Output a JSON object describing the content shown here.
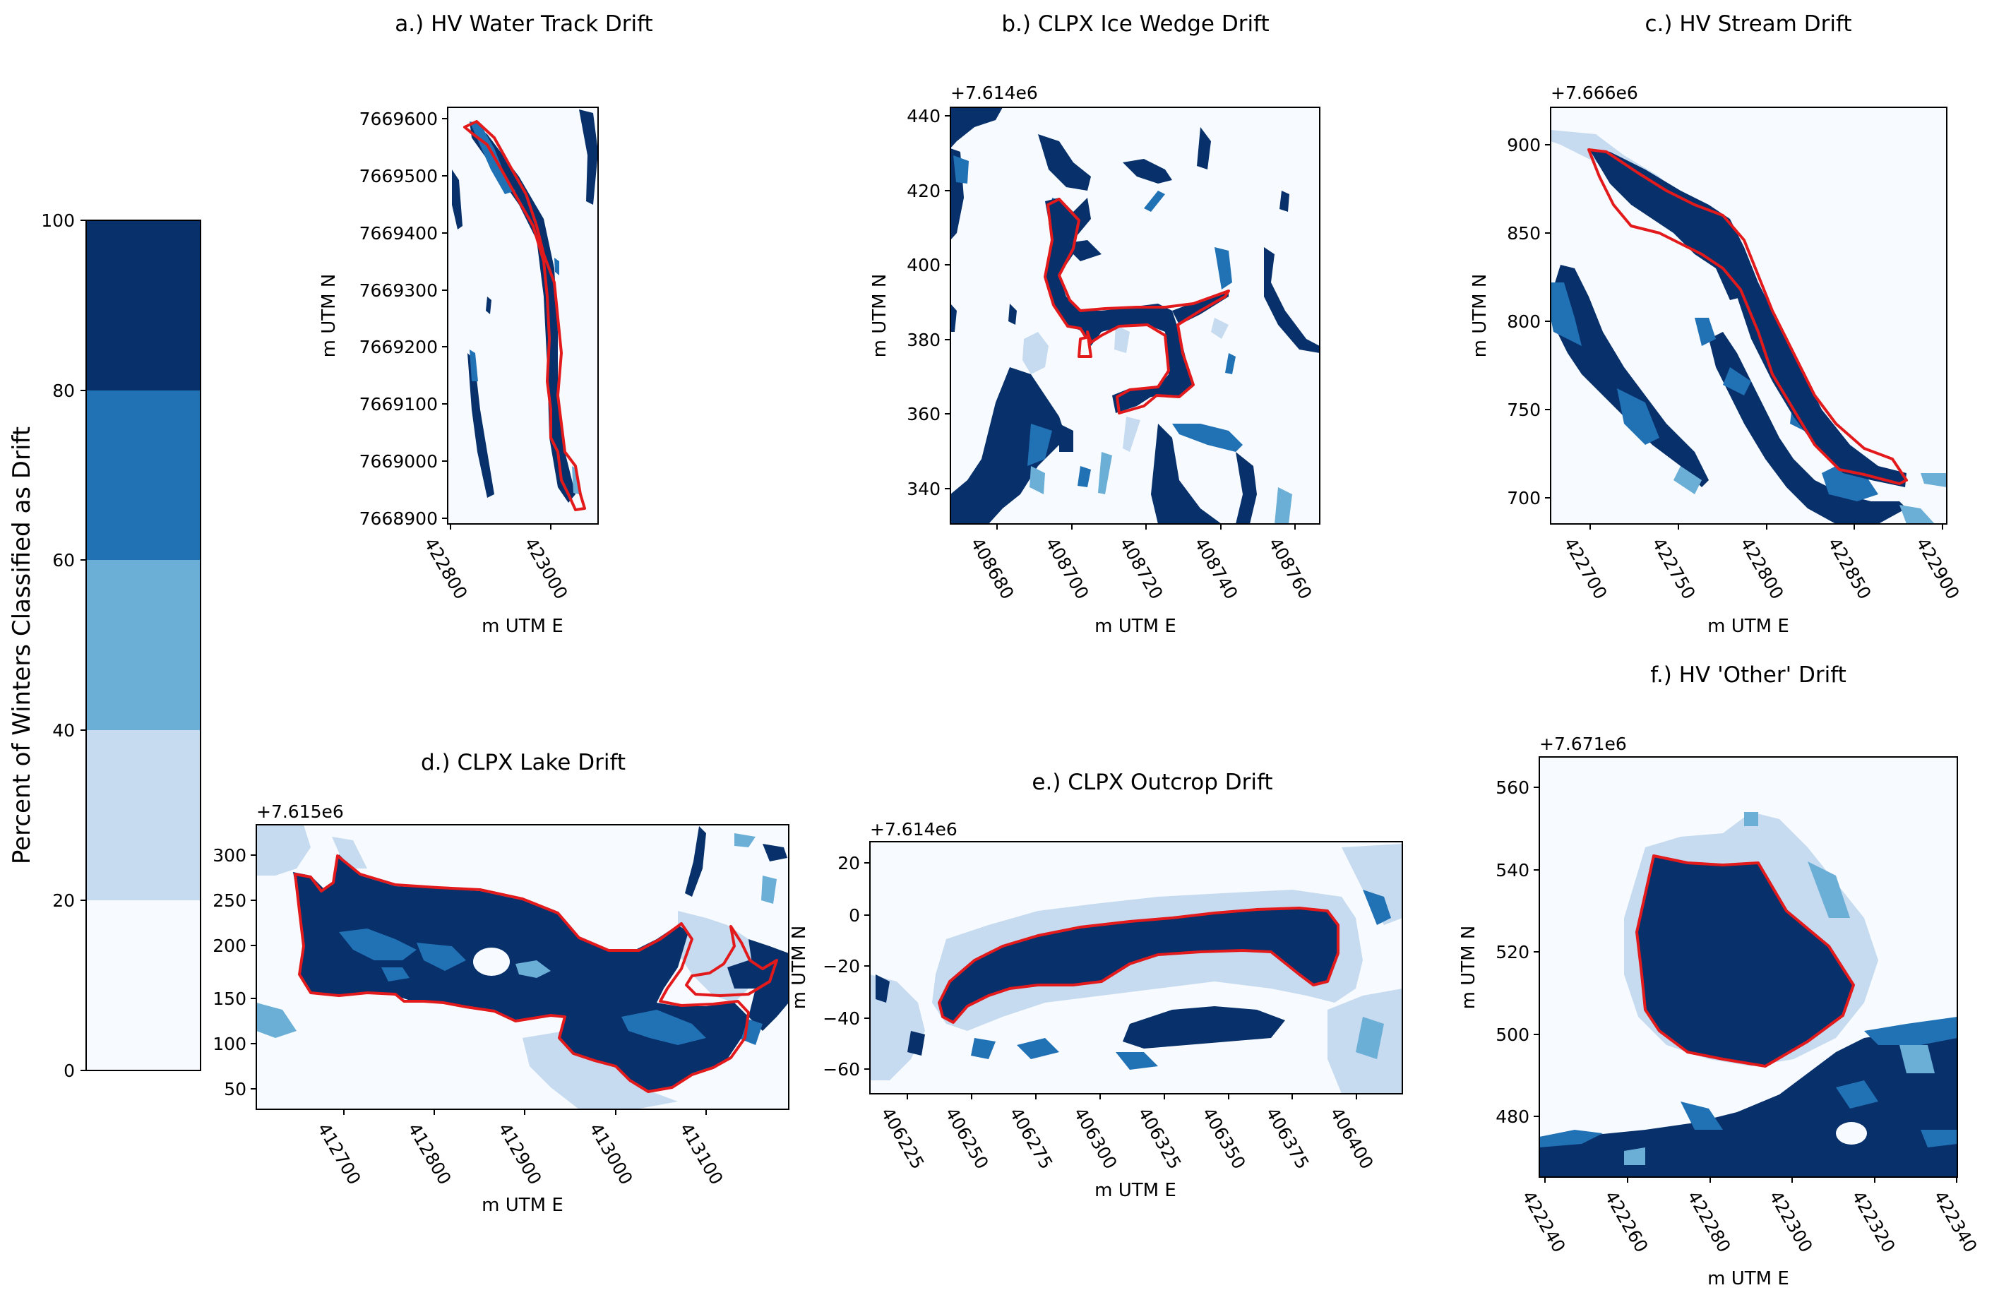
{
  "colorbar": {
    "label": "Percent of Winters Classified as Drift",
    "ticks": [
      "0",
      "20",
      "40",
      "60",
      "80",
      "100"
    ],
    "bins": [
      {
        "range": [
          0,
          20
        ],
        "color": "#f7fbff"
      },
      {
        "range": [
          20,
          40
        ],
        "color": "#c6dbef"
      },
      {
        "range": [
          40,
          60
        ],
        "color": "#6baed6"
      },
      {
        "range": [
          60,
          80
        ],
        "color": "#2171b5"
      },
      {
        "range": [
          80,
          100
        ],
        "color": "#08306b"
      }
    ]
  },
  "boundary_color": "#e31a1c",
  "chart_data": [
    {
      "id": "a",
      "type": "heatmap",
      "title": "a.) HV Water Track Drift",
      "xlabel": "m UTM E",
      "ylabel": "m UTM N",
      "x_ticks": [
        "422800",
        "423000"
      ],
      "y_ticks": [
        "7669600",
        "7669500",
        "7669400",
        "7669300",
        "7669200",
        "7669100",
        "7669000",
        "7668900"
      ],
      "offset_label": ""
    },
    {
      "id": "b",
      "type": "heatmap",
      "title": "b.) CLPX Ice Wedge Drift",
      "xlabel": "m UTM E",
      "ylabel": "m UTM N",
      "x_ticks": [
        "408680",
        "408700",
        "408720",
        "408740",
        "408760"
      ],
      "y_ticks": [
        "440",
        "420",
        "400",
        "380",
        "360",
        "340"
      ],
      "offset_label": "+7.614e6"
    },
    {
      "id": "c",
      "type": "heatmap",
      "title": "c.) HV Stream Drift",
      "xlabel": "m UTM E",
      "ylabel": "m UTM N",
      "x_ticks": [
        "422700",
        "422750",
        "422800",
        "422850",
        "422900"
      ],
      "y_ticks": [
        "900",
        "850",
        "800",
        "750",
        "700"
      ],
      "offset_label": "+7.666e6"
    },
    {
      "id": "d",
      "type": "heatmap",
      "title": "d.) CLPX Lake Drift",
      "xlabel": "m UTM E",
      "ylabel": "",
      "x_ticks": [
        "412700",
        "412800",
        "412900",
        "413000",
        "413100"
      ],
      "y_ticks": [
        "300",
        "250",
        "200",
        "150",
        "100",
        "50"
      ],
      "offset_label": "+7.615e6"
    },
    {
      "id": "e",
      "type": "heatmap",
      "title": "e.) CLPX Outcrop Drift",
      "xlabel": "m UTM E",
      "ylabel": "m UTM N",
      "x_ticks": [
        "406225",
        "406250",
        "406275",
        "406300",
        "406325",
        "406350",
        "406375",
        "406400"
      ],
      "y_ticks": [
        "20",
        "0",
        "−20",
        "−40",
        "−60"
      ],
      "offset_label": "+7.614e6"
    },
    {
      "id": "f",
      "type": "heatmap",
      "title": "f.) HV 'Other' Drift",
      "xlabel": "m UTM E",
      "ylabel": "m UTM N",
      "x_ticks": [
        "422240",
        "422260",
        "422280",
        "422300",
        "422320",
        "422340"
      ],
      "y_ticks": [
        "560",
        "540",
        "520",
        "500",
        "480"
      ],
      "offset_label": "+7.671e6"
    }
  ]
}
